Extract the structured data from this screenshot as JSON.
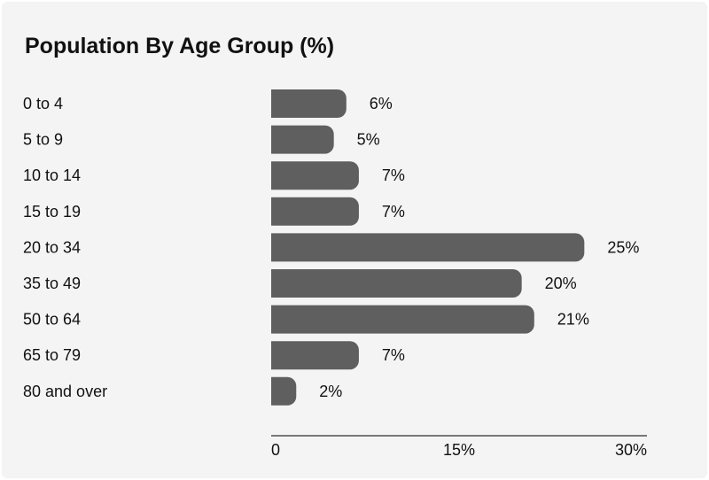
{
  "chart_data": {
    "type": "bar",
    "orientation": "horizontal",
    "title": "Population By Age Group (%)",
    "categories": [
      "0 to 4",
      "5 to 9",
      "10 to 14",
      "15 to 19",
      "20 to 34",
      "35 to 49",
      "50 to 64",
      "65 to 79",
      "80 and over"
    ],
    "values": [
      6,
      5,
      7,
      7,
      25,
      20,
      21,
      7,
      2
    ],
    "value_labels": [
      "6%",
      "5%",
      "7%",
      "7%",
      "25%",
      "20%",
      "21%",
      "7%",
      "2%"
    ],
    "xlim": [
      0,
      30
    ],
    "x_ticks": [
      {
        "value": 0,
        "label": "0"
      },
      {
        "value": 15,
        "label": "15%"
      },
      {
        "value": 30,
        "label": "30%"
      }
    ],
    "grid": false,
    "legend": "none",
    "colors": {
      "bar": "#5f5f5f",
      "text": "#111111",
      "axis": "#777777",
      "background": "#f4f4f4"
    }
  }
}
